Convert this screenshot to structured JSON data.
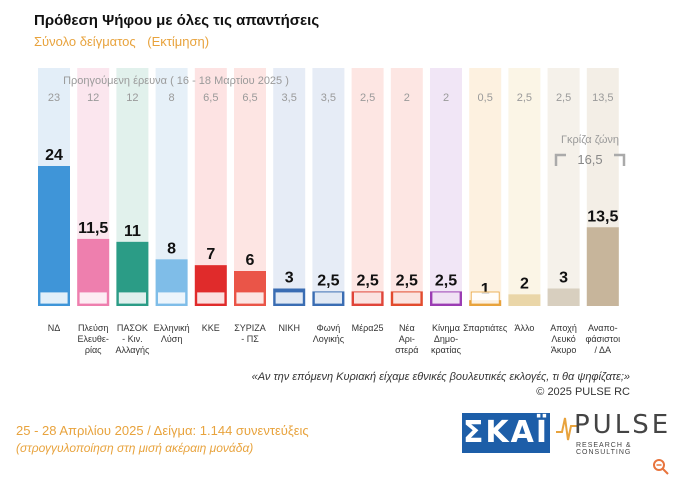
{
  "header": {
    "title": "Πρόθεση Ψήφου με όλες τις απαντήσεις",
    "subtitle": "Σύνολο δείγματος",
    "subtitle_note": "(Εκτίμηση)"
  },
  "chart_data": {
    "type": "bar",
    "previous_label": "Προηγούμενη έρευνα ( 16 - 18 Μαρτίου 2025 )",
    "categories": [
      "ΝΔ",
      "Πλεύση Ελευθερίας",
      "ΠΑΣΟΚ - Κιν. Αλλαγής",
      "Ελληνική Λύση",
      "ΚΚΕ",
      "ΣΥΡΙΖΑ - ΠΣ",
      "ΝΙΚΗ",
      "Φωνή Λογικής",
      "Μέρα25",
      "Νέα Αριστερά",
      "Κίνημα Δημοκρατίας",
      "Σπαρτιάτες",
      "Άλλο",
      "Αποχή Λευκό Άκυρο",
      "Αναποφάσιστοι / ΔΑ"
    ],
    "category_lines": [
      [
        "ΝΔ"
      ],
      [
        "Πλεύση",
        "Ελευθε-",
        "ρίας"
      ],
      [
        "ΠΑΣΟΚ",
        "- Κιν.",
        "Αλλαγής"
      ],
      [
        "Ελληνική",
        "Λύση"
      ],
      [
        "ΚΚΕ"
      ],
      [
        "ΣΥΡΙΖΑ",
        "- ΠΣ"
      ],
      [
        "ΝΙΚΗ"
      ],
      [
        "Φωνή",
        "Λογικής"
      ],
      [
        "Μέρα25"
      ],
      [
        "Νέα",
        "Αρι-",
        "στερά"
      ],
      [
        "Κίνημα",
        "Δημο-",
        "κρατίας"
      ],
      [
        "Σπαρτιάτες"
      ],
      [
        "Άλλο"
      ],
      [
        "Αποχή",
        "Λευκό",
        "Άκυρο"
      ],
      [
        "Αναπο-",
        "φάσιστοι",
        "/ ΔΑ"
      ]
    ],
    "values": [
      "24",
      "11,5",
      "11",
      "8",
      "7",
      "6",
      "3",
      "2,5",
      "2,5",
      "2,5",
      "2,5",
      "1",
      "2",
      "3",
      "13,5"
    ],
    "previous_values": [
      "23",
      "12",
      "12",
      "8",
      "6,5",
      "6,5",
      "3,5",
      "3,5",
      "2,5",
      "2",
      "2",
      "0,5",
      "2,5",
      "2,5",
      "13,5"
    ],
    "grey_zone_label": "Γκρίζα ζώνη",
    "grey_zone_value": "16,5",
    "colors": [
      "#3f95d8",
      "#ee7fae",
      "#2b9c86",
      "#7fbde8",
      "#e02b2b",
      "#ea5548",
      "#3a6db3",
      "#3a6db3",
      "#e0453a",
      "#e24b2e",
      "#9b3db3",
      "#e8a33d",
      "#ead6a8",
      "#d8cfbf",
      "#c7b59b"
    ],
    "bg_colors": [
      "#e3eef8",
      "#fbe6ee",
      "#e1f1ec",
      "#e6f0f8",
      "#fde3e3",
      "#fde5e3",
      "#e6ecf6",
      "#e6ecf6",
      "#fde6e3",
      "#fde6e3",
      "#f1e6f6",
      "#fdf1e0",
      "#fbf5e6",
      "#f5f1ea",
      "#f3eee6"
    ],
    "ylim": [
      0,
      24
    ]
  },
  "footer": {
    "question": "«Αν την επόμενη Κυριακή είχαμε εθνικές βουλευτικές εκλογές, τι θα ψηφίζατε;»",
    "copyright": "©  2025  PULSE RC",
    "dates": "25 - 28 Απριλίου 2025  /  Δείγμα:  1.144 συνεντεύξεις",
    "rounding": "(στρογγυλοποίηση στη μισή ακέραιη μονάδα)"
  },
  "logos": {
    "skai": "ΣΚΑΪ",
    "pulse": "PULSE",
    "pulse_sub": "RESEARCH & CONSULTING"
  }
}
